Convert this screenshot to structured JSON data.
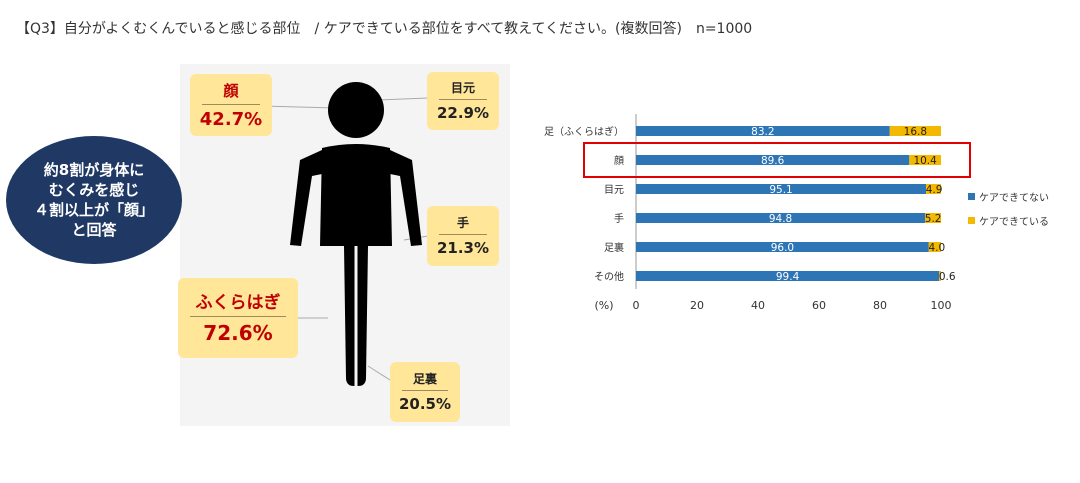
{
  "header": {
    "title": "【Q3】自分がよくむくんでいると感じる部位　/ ケアできている部位をすべて教えてください。(複数回答)　n=1000"
  },
  "summary": {
    "text": "約8割が身体に\nむくみを感じ\n４割以上が「顔」\nと回答"
  },
  "callouts": [
    {
      "label": "顔",
      "value": "42.7%"
    },
    {
      "label": "目元",
      "value": "22.9%"
    },
    {
      "label": "手",
      "value": "21.3%"
    },
    {
      "label": "ふくらはぎ",
      "value": "72.6%"
    },
    {
      "label": "足裏",
      "value": "20.5%"
    }
  ],
  "colors": {
    "blue": "#2e75b6",
    "gold": "#f5b800",
    "highlight": "#e00000",
    "navy": "#1f3864",
    "callout": "#ffe699"
  },
  "chart_data": {
    "type": "bar",
    "orientation": "horizontal",
    "stacked": true,
    "categories": [
      "足（ふくらはぎ）",
      "顔",
      "目元",
      "手",
      "足裏",
      "その他"
    ],
    "series": [
      {
        "name": "ケアできてない",
        "values": [
          83.2,
          89.6,
          95.1,
          94.8,
          96.0,
          99.4
        ],
        "labels": [
          "83.2",
          "89.6",
          "95.1",
          "94.8",
          "96.0",
          "99.4"
        ]
      },
      {
        "name": "ケアできている",
        "values": [
          16.8,
          10.4,
          4.9,
          5.2,
          4.0,
          0.6
        ],
        "labels": [
          "16.8",
          "10.4",
          "4.9",
          "5.2",
          "4.0",
          "0.6"
        ]
      }
    ],
    "xlabel": "(%)",
    "xlim": [
      0,
      100
    ],
    "xticks": [
      "0",
      "20",
      "40",
      "60",
      "80",
      "100"
    ],
    "highlight_category": "顔",
    "legend_position": "right",
    "grid": false
  }
}
